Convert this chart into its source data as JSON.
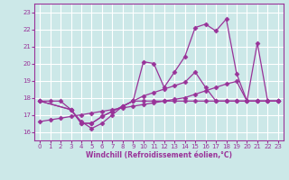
{
  "title": "",
  "xlabel": "Windchill (Refroidissement éolien,°C)",
  "ylabel": "",
  "bg_color": "#cce8e8",
  "grid_color": "#ffffff",
  "line_color": "#993399",
  "xlim": [
    -0.5,
    23.5
  ],
  "ylim": [
    15.5,
    23.5
  ],
  "yticks": [
    16,
    17,
    18,
    19,
    20,
    21,
    22,
    23
  ],
  "xticks": [
    0,
    1,
    2,
    3,
    4,
    5,
    6,
    7,
    8,
    9,
    10,
    11,
    12,
    13,
    14,
    15,
    16,
    17,
    18,
    19,
    20,
    21,
    22,
    23
  ],
  "line1_x": [
    0,
    1,
    2,
    3,
    4,
    5,
    6,
    7,
    8,
    9,
    10,
    11,
    12,
    13,
    14,
    15,
    16,
    17,
    18,
    19,
    20,
    21,
    22,
    23
  ],
  "line1_y": [
    17.8,
    17.8,
    17.8,
    17.3,
    16.6,
    16.2,
    16.5,
    17.0,
    17.5,
    17.8,
    17.8,
    17.8,
    17.8,
    17.8,
    17.8,
    17.8,
    17.8,
    17.8,
    17.8,
    17.8,
    17.8,
    17.8,
    17.8,
    17.8
  ],
  "line2_x": [
    0,
    3,
    4,
    5,
    6,
    7,
    8,
    9,
    10,
    11,
    12,
    13,
    14,
    15,
    16,
    17,
    18,
    19,
    20,
    21,
    22,
    23
  ],
  "line2_y": [
    17.8,
    17.3,
    16.5,
    16.5,
    16.9,
    17.2,
    17.5,
    17.8,
    18.1,
    18.3,
    18.5,
    18.7,
    18.9,
    19.5,
    18.6,
    17.8,
    17.8,
    17.8,
    17.8,
    17.8,
    17.8,
    17.8
  ],
  "line3_x": [
    0,
    3,
    4,
    5,
    6,
    7,
    8,
    9,
    10,
    11,
    12,
    13,
    14,
    15,
    16,
    17,
    18,
    19,
    20,
    21,
    22,
    23
  ],
  "line3_y": [
    17.8,
    17.3,
    16.5,
    16.5,
    16.9,
    17.2,
    17.5,
    17.8,
    20.1,
    20.0,
    18.6,
    19.5,
    20.4,
    22.1,
    22.3,
    21.9,
    22.6,
    19.4,
    17.8,
    21.2,
    17.8,
    17.8
  ],
  "line4_x": [
    0,
    1,
    2,
    3,
    4,
    5,
    6,
    7,
    8,
    9,
    10,
    11,
    12,
    13,
    14,
    15,
    16,
    17,
    18,
    19,
    20,
    21,
    22,
    23
  ],
  "line4_y": [
    16.6,
    16.7,
    16.8,
    16.9,
    17.0,
    17.1,
    17.2,
    17.3,
    17.4,
    17.5,
    17.6,
    17.7,
    17.8,
    17.9,
    18.0,
    18.2,
    18.4,
    18.6,
    18.8,
    18.95,
    17.8,
    17.8,
    17.8,
    17.8
  ]
}
